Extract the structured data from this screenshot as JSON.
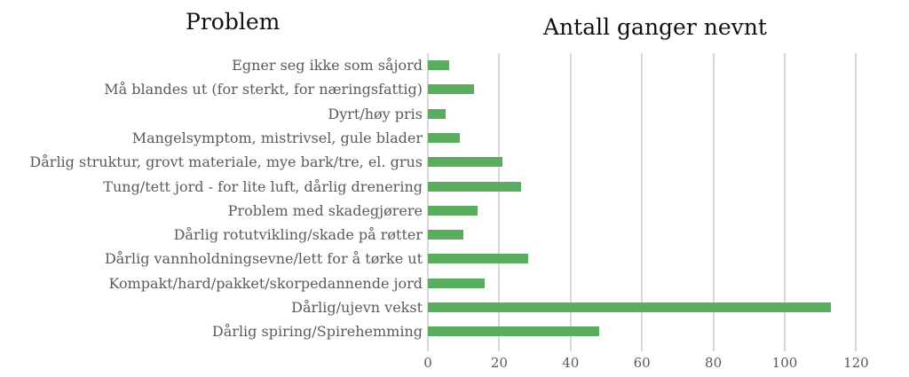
{
  "header": {
    "left_title": "Problem",
    "right_title": "Antall ganger nevnt"
  },
  "chart_data": {
    "type": "bar",
    "orientation": "horizontal",
    "title": "Antall ganger nevnt",
    "ylabel": "Problem",
    "xlabel": "",
    "categories": [
      "Egner seg ikke som såjord",
      "Må blandes ut (for sterkt, for næringsfattig)",
      "Dyrt/høy pris",
      "Mangelsymptom, mistrivsel, gule blader",
      "Dårlig struktur, grovt materiale, mye bark/tre, el. grus",
      "Tung/tett jord - for lite luft, dårlig drenering",
      "Problem med skadegjørere",
      "Dårlig rotutvikling/skade på røtter",
      "Dårlig vannholdningsevne/lett for å tørke ut",
      "Kompakt/hard/pakket/skorpedannende jord",
      "Dårlig/ujevn vekst",
      "Dårlig spiring/Spirehemming"
    ],
    "values": [
      6,
      13,
      5,
      9,
      21,
      26,
      14,
      10,
      28,
      16,
      113,
      48
    ],
    "xlim": [
      0,
      120
    ],
    "xticks": [
      "0",
      "20",
      "40",
      "60",
      "80",
      "100",
      "120"
    ],
    "grid": "vertical",
    "legend": "none",
    "bar_color": "#5aac5f"
  }
}
